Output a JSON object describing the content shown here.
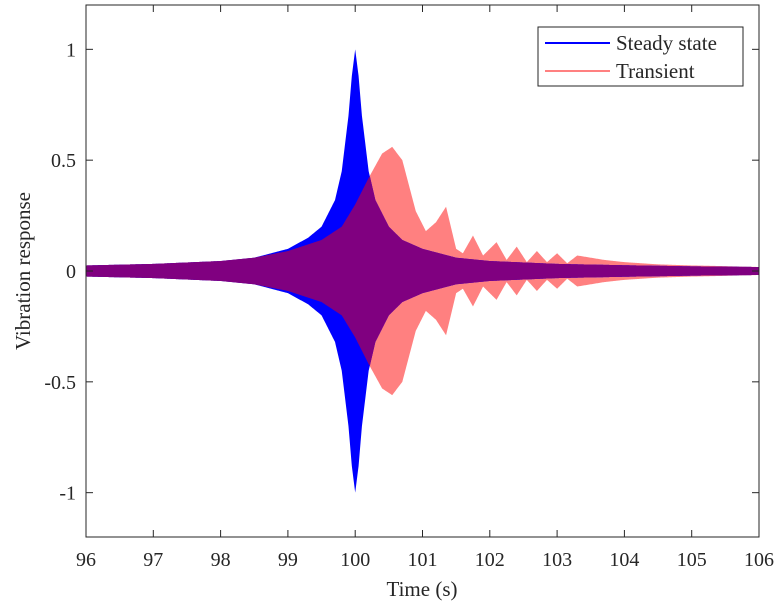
{
  "chart_data": {
    "type": "area",
    "xlabel": "Time (s)",
    "ylabel": "Vibration response",
    "xlim": [
      96,
      106
    ],
    "ylim": [
      -1.2,
      1.2
    ],
    "x_ticks": [
      96,
      97,
      98,
      99,
      100,
      101,
      102,
      103,
      104,
      105,
      106
    ],
    "y_ticks": [
      -1,
      -0.5,
      0,
      0.5,
      1
    ],
    "y_tick_labels": [
      "-1",
      "-0.5",
      "0",
      "0.5",
      "1"
    ],
    "grid": false,
    "legend_position": "top-right",
    "series": [
      {
        "name": "Steady state",
        "color": "#0000ff",
        "envelope_x": [
          96,
          97,
          98,
          98.5,
          99,
          99.3,
          99.5,
          99.7,
          99.8,
          99.9,
          99.95,
          100,
          100.05,
          100.1,
          100.2,
          100.3,
          100.5,
          100.7,
          101,
          101.5,
          102,
          103,
          104,
          105,
          106
        ],
        "envelope_y": [
          0.025,
          0.032,
          0.045,
          0.06,
          0.1,
          0.15,
          0.2,
          0.32,
          0.45,
          0.7,
          0.88,
          1.0,
          0.88,
          0.7,
          0.45,
          0.32,
          0.2,
          0.14,
          0.1,
          0.06,
          0.045,
          0.032,
          0.026,
          0.021,
          0.018
        ]
      },
      {
        "name": "Transient",
        "color": "#ff8080",
        "envelope_x": [
          96,
          97,
          98,
          98.5,
          99,
          99.5,
          99.8,
          100,
          100.2,
          100.4,
          100.55,
          100.7,
          100.9,
          101.05,
          101.2,
          101.35,
          101.5,
          101.6,
          101.75,
          101.9,
          102.1,
          102.25,
          102.4,
          102.55,
          102.7,
          102.85,
          103,
          103.15,
          103.3,
          103.5,
          103.7,
          104,
          104.5,
          105,
          105.5,
          106
        ],
        "envelope_y": [
          0.025,
          0.032,
          0.045,
          0.06,
          0.09,
          0.14,
          0.2,
          0.3,
          0.42,
          0.53,
          0.56,
          0.5,
          0.27,
          0.18,
          0.22,
          0.29,
          0.1,
          0.08,
          0.16,
          0.07,
          0.13,
          0.05,
          0.11,
          0.04,
          0.09,
          0.04,
          0.08,
          0.035,
          0.07,
          0.06,
          0.05,
          0.04,
          0.03,
          0.025,
          0.022,
          0.018
        ]
      }
    ],
    "overlap_color": "#800080"
  }
}
